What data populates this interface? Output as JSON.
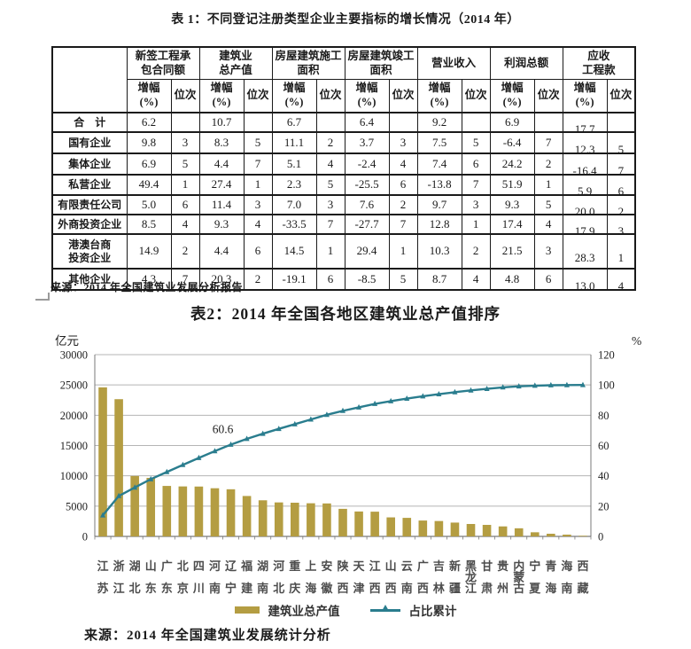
{
  "table1": {
    "title": "表 1：不同登记注册类型企业主要指标的增长情况（2014 年）",
    "column_groups": [
      "新签工程承\n包合同额",
      "建筑业\n总产值",
      "房屋建筑施工\n面积",
      "房屋建筑竣工\n面积",
      "营业收入",
      "利润总额",
      "应收\n工程款"
    ],
    "sub_headers": [
      "增幅\n(%)",
      "位次"
    ],
    "rows": [
      {
        "label": "合　计",
        "values": [
          "6.2",
          "",
          "10.7",
          "",
          "6.7",
          "",
          "6.4",
          "",
          "9.2",
          "",
          "6.9",
          "",
          "17.7",
          ""
        ]
      },
      {
        "label": "国有企业",
        "values": [
          "9.8",
          "3",
          "8.3",
          "5",
          "11.1",
          "2",
          "3.7",
          "3",
          "7.5",
          "5",
          "-6.4",
          "7",
          "12.3",
          "5"
        ]
      },
      {
        "label": "集体企业",
        "values": [
          "6.9",
          "5",
          "4.4",
          "7",
          "5.1",
          "4",
          "-2.4",
          "4",
          "7.4",
          "6",
          "24.2",
          "2",
          "-16.4",
          "7"
        ]
      },
      {
        "label": "私营企业",
        "values": [
          "49.4",
          "1",
          "27.4",
          "1",
          "2.3",
          "5",
          "-25.5",
          "6",
          "-13.8",
          "7",
          "51.9",
          "1",
          "5.9",
          "6"
        ]
      },
      {
        "label": "有限责任公司",
        "values": [
          "5.0",
          "6",
          "11.4",
          "3",
          "7.0",
          "3",
          "7.6",
          "2",
          "9.7",
          "3",
          "9.3",
          "5",
          "20.0",
          "2"
        ]
      },
      {
        "label": "外商投资企业",
        "values": [
          "8.5",
          "4",
          "9.3",
          "4",
          "-33.5",
          "7",
          "-27.7",
          "7",
          "12.8",
          "1",
          "17.4",
          "4",
          "17.9",
          "3"
        ]
      },
      {
        "label": "港澳台商\n投资企业",
        "values": [
          "14.9",
          "2",
          "4.4",
          "6",
          "14.5",
          "1",
          "29.4",
          "1",
          "10.3",
          "2",
          "21.5",
          "3",
          "28.3",
          "1"
        ]
      },
      {
        "label": "其他企业",
        "values": [
          "4.3",
          "7",
          "20.3",
          "2",
          "-19.1",
          "6",
          "-8.5",
          "5",
          "8.7",
          "4",
          "4.8",
          "6",
          "13.0",
          "4"
        ]
      }
    ],
    "source": "来源：2014 年全国建筑业发展分析报告"
  },
  "chart_data": {
    "type": "bar",
    "title": "表2：2014 年全国各地区建筑业总产值排序",
    "categories": [
      "江苏",
      "浙江",
      "湖北",
      "山东",
      "广东",
      "北京",
      "四川",
      "河南",
      "辽宁",
      "福建",
      "湖南",
      "河北",
      "重庆",
      "上海",
      "安徽",
      "陕西",
      "天津",
      "江西",
      "山西",
      "云南",
      "广西",
      "吉林",
      "新疆",
      "黑龙江",
      "甘肃",
      "贵州",
      "内蒙古",
      "宁夏",
      "青海",
      "海南",
      "西藏"
    ],
    "series": [
      {
        "name": "建筑业总产值",
        "type": "bar",
        "axis": "left",
        "values": [
          24600,
          22650,
          9970,
          9660,
          8330,
          8250,
          8230,
          7950,
          7780,
          6670,
          5960,
          5610,
          5560,
          5470,
          5440,
          4550,
          4110,
          4080,
          3140,
          3060,
          2620,
          2540,
          2280,
          2050,
          1900,
          1650,
          1340,
          680,
          440,
          290,
          100
        ]
      },
      {
        "name": "占比累计",
        "type": "line",
        "axis": "right",
        "values": [
          13.9,
          26.7,
          32.3,
          37.8,
          42.5,
          47.2,
          51.8,
          56.3,
          60.6,
          64.4,
          67.8,
          71.0,
          74.1,
          77.2,
          80.3,
          82.9,
          85.2,
          87.5,
          89.3,
          91.0,
          92.5,
          93.9,
          95.2,
          96.4,
          97.4,
          98.4,
          99.1,
          99.5,
          99.8,
          99.9,
          100.0
        ]
      }
    ],
    "ylabel_left": "亿元",
    "ylabel_right": "%",
    "ylim_left": [
      0,
      30000
    ],
    "yticks_left": [
      0,
      5000,
      10000,
      15000,
      20000,
      25000,
      30000
    ],
    "ylim_right": [
      0,
      120
    ],
    "yticks_right": [
      0,
      20,
      40,
      60,
      80,
      100,
      120
    ],
    "annotation": {
      "text": "60.6",
      "series": "占比累计",
      "index": 8,
      "value": 60.6
    },
    "grid": true,
    "legend_position": "bottom",
    "colors": {
      "bar": "#b49d42",
      "line": "#2a7d8e",
      "grid": "#b5b5b5",
      "axis": "#7a7a7a",
      "tick_text": "#222222",
      "category_text": "#4d4d4d"
    }
  },
  "chart_source": "来源：2014 年全国建筑业发展统计分析"
}
